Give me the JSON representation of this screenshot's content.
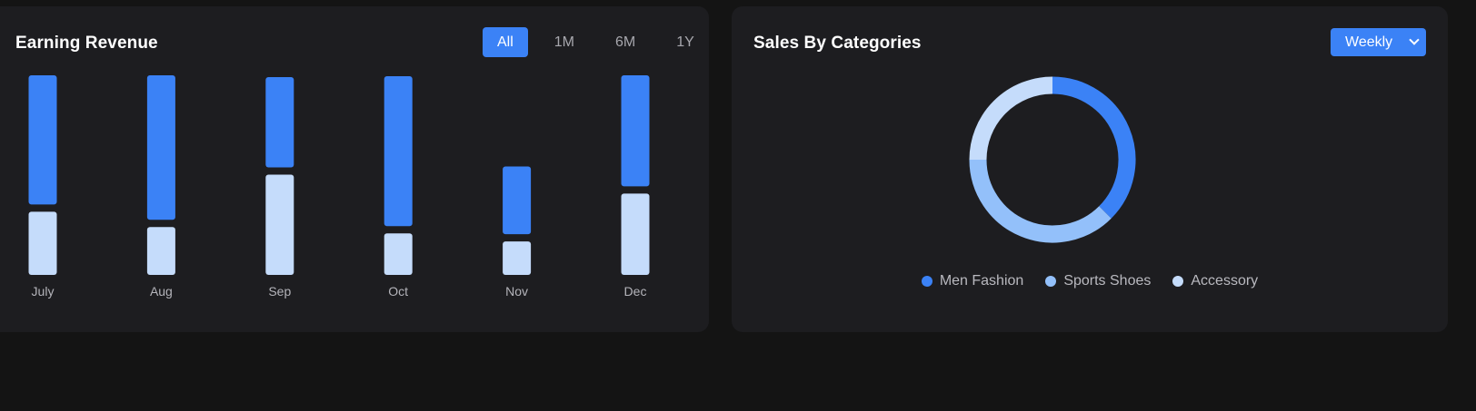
{
  "revenue": {
    "title": "Earning Revenue",
    "range_tabs": [
      {
        "label": "All",
        "active": true
      },
      {
        "label": "1M",
        "active": false
      },
      {
        "label": "6M",
        "active": false
      },
      {
        "label": "1Y",
        "active": false
      }
    ]
  },
  "sales": {
    "title": "Sales By Categories",
    "period_select": "Weekly"
  },
  "chart_data": [
    {
      "type": "bar",
      "stacked": true,
      "categories": [
        "July",
        "Aug",
        "Sep",
        "Oct",
        "Nov",
        "Dec"
      ],
      "series": [
        {
          "color": "#c5dcfb",
          "values": [
            70,
            53,
            111,
            46,
            37,
            90
          ]
        },
        {
          "color": "#3b82f6",
          "values": [
            143,
            160,
            100,
            166,
            75,
            123
          ]
        }
      ],
      "ylim": [
        0,
        221
      ],
      "grid": false
    },
    {
      "type": "pie",
      "donut": true,
      "labels": [
        "Men Fashion",
        "Sports Shoes",
        "Accessory"
      ],
      "values": [
        37.5,
        37.5,
        25
      ],
      "colors": [
        "#3b82f6",
        "#93c0fa",
        "#c5dcfb"
      ],
      "legend": "bottom"
    }
  ]
}
